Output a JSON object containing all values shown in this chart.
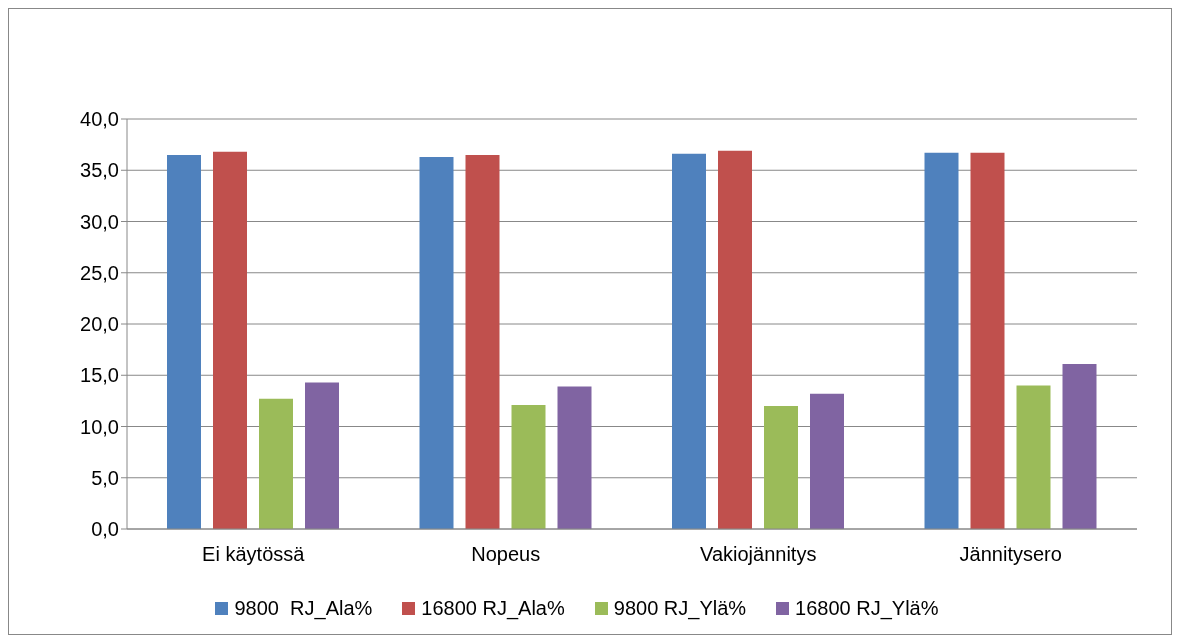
{
  "chart_data": {
    "type": "bar",
    "categories": [
      "Ei käytössä",
      "Nopeus",
      "Vakiojännitys",
      "Jännitysero"
    ],
    "series": [
      {
        "name": "9800  RJ_Ala%",
        "color": "#4f81bd",
        "values": [
          36.5,
          36.3,
          36.6,
          36.7
        ]
      },
      {
        "name": "16800 RJ_Ala%",
        "color": "#c0504d",
        "values": [
          36.8,
          36.5,
          36.9,
          36.7
        ]
      },
      {
        "name": "9800 RJ_Ylä%",
        "color": "#9bbb59",
        "values": [
          12.7,
          12.1,
          12.0,
          14.0
        ]
      },
      {
        "name": "16800 RJ_Ylä%",
        "color": "#8064a2",
        "values": [
          14.3,
          13.9,
          13.2,
          16.1
        ]
      }
    ],
    "ylim": [
      0,
      40
    ],
    "yticks": [
      {
        "value": 0,
        "label": "0,0"
      },
      {
        "value": 5,
        "label": "5,0"
      },
      {
        "value": 10,
        "label": "10,0"
      },
      {
        "value": 15,
        "label": "15,0"
      },
      {
        "value": 20,
        "label": "20,0"
      },
      {
        "value": 25,
        "label": "25,0"
      },
      {
        "value": 30,
        "label": "30,0"
      },
      {
        "value": 35,
        "label": "35,0"
      },
      {
        "value": 40,
        "label": "40,0"
      }
    ],
    "grid": "y",
    "legend": "bottom"
  }
}
